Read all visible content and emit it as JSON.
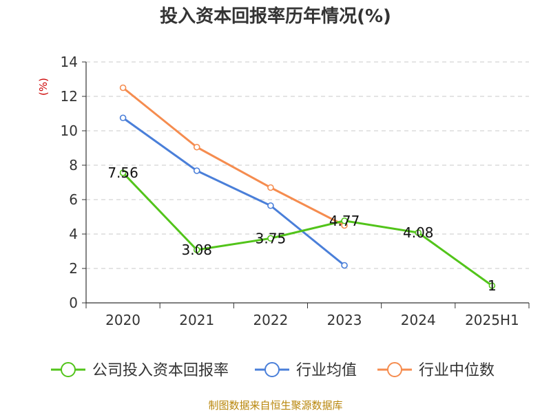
{
  "chart_data": {
    "type": "line",
    "title": "投入资本回报率历年情况(%)",
    "ylabel": "(%)",
    "categories": [
      "2020",
      "2021",
      "2022",
      "2023",
      "2024",
      "2025H1"
    ],
    "ylim": [
      0,
      14
    ],
    "yticks": [
      "0",
      "2",
      "4",
      "6",
      "8",
      "10",
      "12",
      "14"
    ],
    "grid": true,
    "legend_position": "bottom",
    "series": [
      {
        "name": "公司投入资本回报率",
        "color": "#52c41a",
        "values": [
          7.56,
          3.08,
          3.75,
          4.77,
          4.08,
          1
        ],
        "labels": [
          "7.56",
          "3.08",
          "3.75",
          "4.77",
          "4.08",
          "1"
        ]
      },
      {
        "name": "行业均值",
        "color": "#4a7fd9",
        "values": [
          10.75,
          7.68,
          5.65,
          2.18,
          null,
          null
        ]
      },
      {
        "name": "行业中位数",
        "color": "#f58c4f",
        "values": [
          12.5,
          9.05,
          6.7,
          4.5,
          null,
          null
        ]
      }
    ],
    "source": "制图数据来自恒生聚源数据库"
  }
}
